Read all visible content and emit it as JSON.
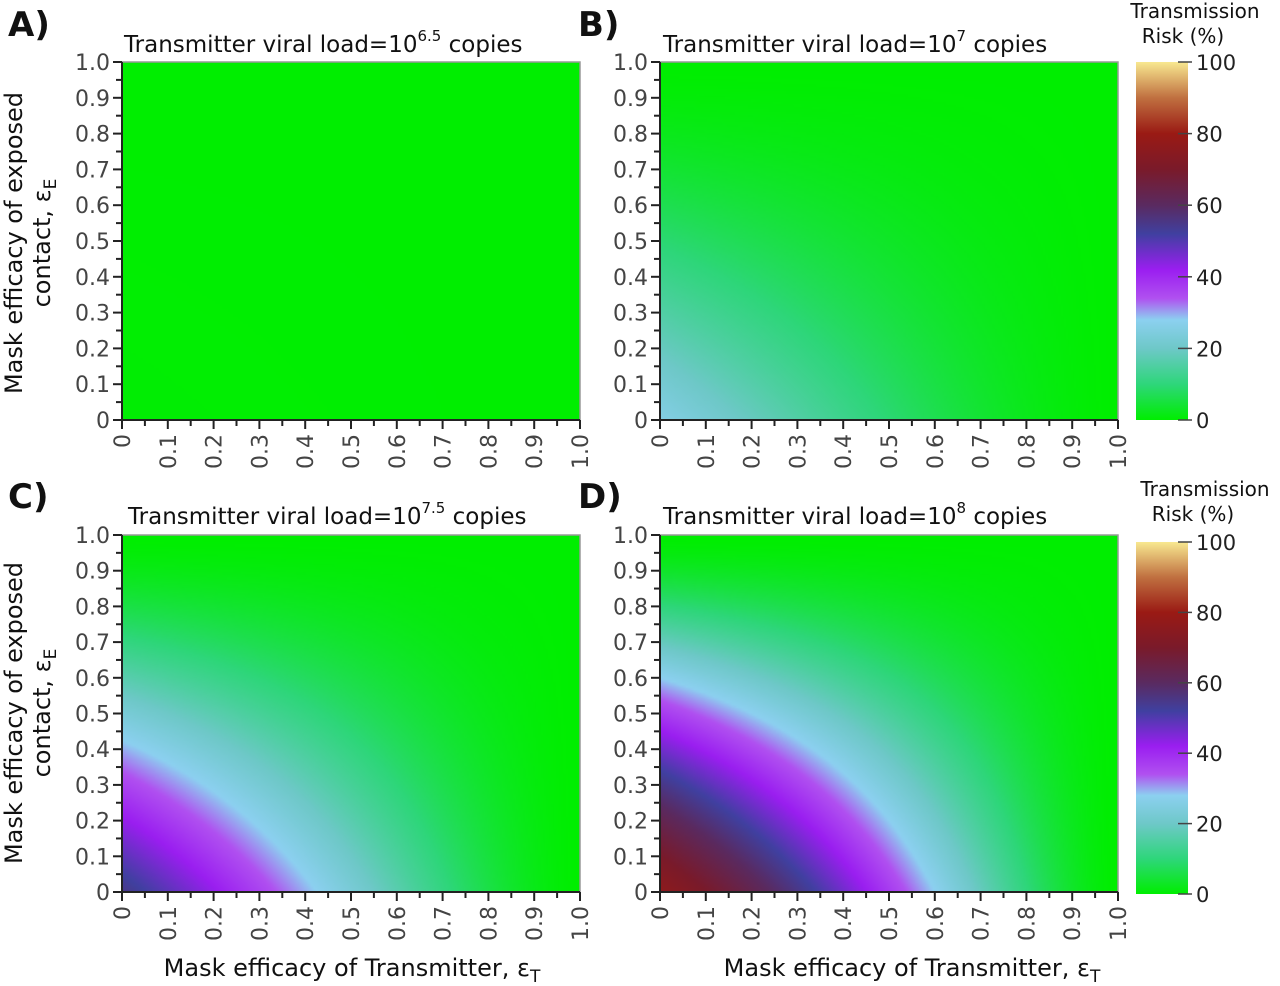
{
  "axis_labels": {
    "x": "Mask efficacy of Transmitter, ε",
    "x_sub": "T",
    "y_line1": "Mask efficacy of exposed",
    "y_line2": "contact, ε",
    "y_sub": "E"
  },
  "colorbar": {
    "title_line1": "Transmission",
    "title_line2": "Risk (%)",
    "ticks": [
      "100",
      "80",
      "60",
      "40",
      "20",
      "0"
    ],
    "stops": [
      {
        "value": 0,
        "color": "#00ee00"
      },
      {
        "value": 10,
        "color": "#2ed67a"
      },
      {
        "value": 20,
        "color": "#6ec8c8"
      },
      {
        "value": 28,
        "color": "#8cd0f0"
      },
      {
        "value": 34,
        "color": "#b050f0"
      },
      {
        "value": 42,
        "color": "#9a1ef0"
      },
      {
        "value": 52,
        "color": "#4040a0"
      },
      {
        "value": 60,
        "color": "#5a2a60"
      },
      {
        "value": 70,
        "color": "#7a1a2a"
      },
      {
        "value": 80,
        "color": "#9a1a14"
      },
      {
        "value": 90,
        "color": "#c07040"
      },
      {
        "value": 100,
        "color": "#f8e890"
      }
    ]
  },
  "chart_data": [
    {
      "panel": "A)",
      "type": "heatmap",
      "title_prefix": "Transmitter viral load=10",
      "title_exp": "6.5",
      "title_suffix": " copies",
      "x_ticks": [
        "0",
        "0.1",
        "0.2",
        "0.3",
        "0.4",
        "0.5",
        "0.6",
        "0.7",
        "0.8",
        "0.9",
        "1.0"
      ],
      "y_ticks": [
        "0",
        "0.1",
        "0.2",
        "0.3",
        "0.4",
        "0.5",
        "0.6",
        "0.7",
        "0.8",
        "0.9",
        "1.0"
      ],
      "xlim": [
        0,
        1
      ],
      "ylim": [
        0,
        1
      ],
      "risk_at_zero_masks_pct": 0.3,
      "value_units": "Transmission Risk (%)"
    },
    {
      "panel": "B)",
      "type": "heatmap",
      "title_prefix": "Transmitter viral load=10",
      "title_exp": "7",
      "title_suffix": " copies",
      "x_ticks": [
        "0",
        "0.1",
        "0.2",
        "0.3",
        "0.4",
        "0.5",
        "0.6",
        "0.7",
        "0.8",
        "0.9",
        "1.0"
      ],
      "y_ticks": [
        "0",
        "0.1",
        "0.2",
        "0.3",
        "0.4",
        "0.5",
        "0.6",
        "0.7",
        "0.8",
        "0.9",
        "1.0"
      ],
      "xlim": [
        0,
        1
      ],
      "ylim": [
        0,
        1
      ],
      "risk_at_zero_masks_pct": 26,
      "value_units": "Transmission Risk (%)"
    },
    {
      "panel": "C)",
      "type": "heatmap",
      "title_prefix": "Transmitter viral load=10",
      "title_exp": "7.5",
      "title_suffix": " copies",
      "x_ticks": [
        "0",
        "0.1",
        "0.2",
        "0.3",
        "0.4",
        "0.5",
        "0.6",
        "0.7",
        "0.8",
        "0.9",
        "1.0"
      ],
      "y_ticks": [
        "0",
        "0.1",
        "0.2",
        "0.3",
        "0.4",
        "0.5",
        "0.6",
        "0.7",
        "0.8",
        "0.9",
        "1.0"
      ],
      "xlim": [
        0,
        1
      ],
      "ylim": [
        0,
        1
      ],
      "risk_at_zero_masks_pct": 55,
      "value_units": "Transmission Risk (%)"
    },
    {
      "panel": "D)",
      "type": "heatmap",
      "title_prefix": "Transmitter viral load=10",
      "title_exp": "8",
      "title_suffix": " copies",
      "x_ticks": [
        "0",
        "0.1",
        "0.2",
        "0.3",
        "0.4",
        "0.5",
        "0.6",
        "0.7",
        "0.8",
        "0.9",
        "1.0"
      ],
      "y_ticks": [
        "0",
        "0.1",
        "0.2",
        "0.3",
        "0.4",
        "0.5",
        "0.6",
        "0.7",
        "0.8",
        "0.9",
        "1.0"
      ],
      "xlim": [
        0,
        1
      ],
      "ylim": [
        0,
        1
      ],
      "risk_at_zero_masks_pct": 76,
      "value_units": "Transmission Risk (%)"
    }
  ]
}
